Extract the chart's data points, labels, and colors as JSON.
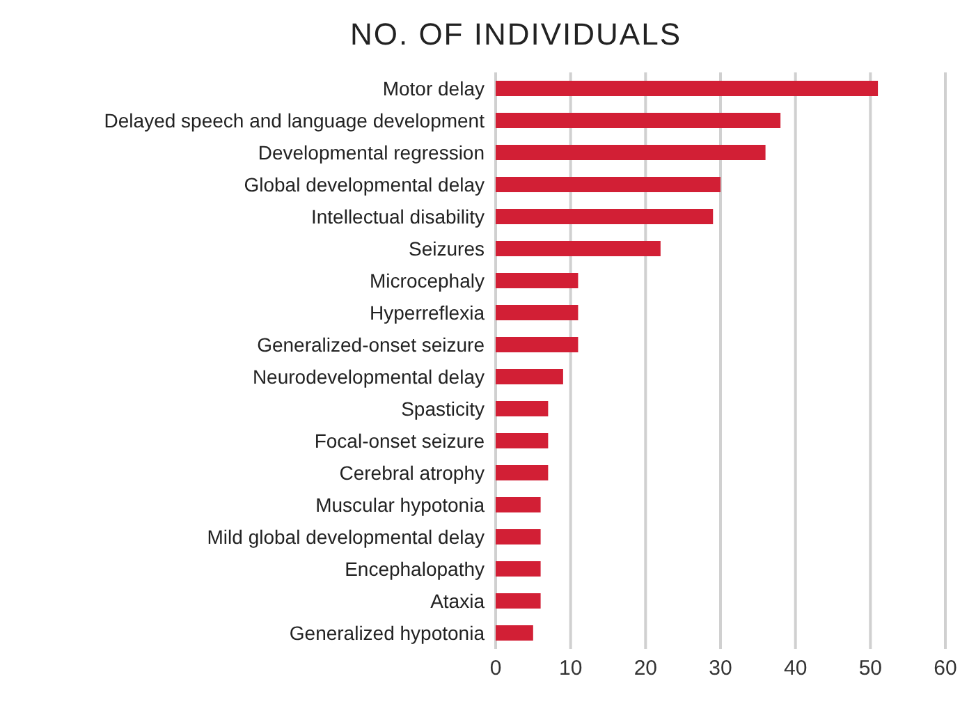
{
  "chart_data": {
    "type": "bar",
    "orientation": "horizontal",
    "title": "NO. OF INDIVIDUALS",
    "categories": [
      "Motor delay",
      "Delayed speech and language development",
      "Developmental regression",
      "Global developmental delay",
      "Intellectual disability",
      "Seizures",
      "Microcephaly",
      "Hyperreflexia",
      "Generalized-onset seizure",
      "Neurodevelopmental delay",
      "Spasticity",
      "Focal-onset seizure",
      "Cerebral atrophy",
      "Muscular hypotonia",
      "Mild global developmental delay",
      "Encephalopathy",
      "Ataxia",
      "Generalized hypotonia"
    ],
    "values": [
      51,
      38,
      36,
      30,
      29,
      22,
      11,
      11,
      11,
      9,
      7,
      7,
      7,
      6,
      6,
      6,
      6,
      5
    ],
    "color": "#d21f35",
    "xlim": [
      0,
      60
    ],
    "xticks": [
      0,
      10,
      20,
      30,
      40,
      50,
      60
    ],
    "grid": "x",
    "legend": false
  }
}
